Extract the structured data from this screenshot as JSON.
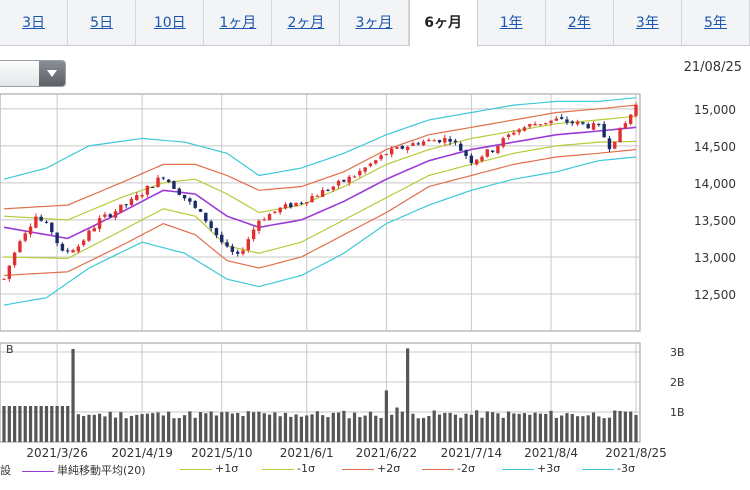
{
  "tabs": [
    {
      "label": "3日",
      "active": false
    },
    {
      "label": "5日",
      "active": false
    },
    {
      "label": "10日",
      "active": false
    },
    {
      "label": "1ヶ月",
      "active": false
    },
    {
      "label": "2ヶ月",
      "active": false
    },
    {
      "label": "3ヶ月",
      "active": false
    },
    {
      "label": "6ヶ月",
      "active": true
    },
    {
      "label": "1年",
      "active": false
    },
    {
      "label": "2年",
      "active": false
    },
    {
      "label": "3年",
      "active": false
    },
    {
      "label": "5年",
      "active": false
    }
  ],
  "date_label": "21/08/25",
  "volume_label": "B",
  "legend_prefix": "設",
  "colors": {
    "up": "#e03030",
    "down": "#1b2a6b",
    "ma": "#9b3bd6",
    "s1": "#b7cc3a",
    "s2": "#e0704a",
    "s3": "#3ec8d8",
    "grid": "#c8c8c8",
    "volume": "#555555"
  },
  "legend": [
    {
      "label": "単純移動平均(20)",
      "color": "#9b3bd6"
    },
    {
      "label": "+1σ",
      "color": "#b7cc3a"
    },
    {
      "label": "-1σ",
      "color": "#b7cc3a"
    },
    {
      "label": "+2σ",
      "color": "#e0704a"
    },
    {
      "label": "-2σ",
      "color": "#e0704a"
    },
    {
      "label": "+3σ",
      "color": "#3ec8d8"
    },
    {
      "label": "-3σ",
      "color": "#3ec8d8"
    }
  ],
  "chart_data": {
    "type": "candlestick",
    "ylim": [
      12000,
      15200
    ],
    "yticks": [
      12500,
      13000,
      13500,
      14000,
      14500,
      15000
    ],
    "ytick_labels": [
      "12,500",
      "13,000",
      "13,500",
      "14,000",
      "14,500",
      "15,000"
    ],
    "xtick_labels": [
      "2021/3/26",
      "2021/4/19",
      "2021/5/10",
      "2021/6/1",
      "2021/6/22",
      "2021/7/14",
      "2021/8/4",
      "2021/8/25"
    ],
    "xtick_index": [
      10,
      26,
      41,
      57,
      72,
      88,
      103,
      119
    ],
    "n_days": 120,
    "price_anchors": [
      [
        0,
        12700
      ],
      [
        3,
        13250
      ],
      [
        6,
        13550
      ],
      [
        9,
        13350
      ],
      [
        11,
        13050
      ],
      [
        14,
        13150
      ],
      [
        18,
        13500
      ],
      [
        24,
        13750
      ],
      [
        30,
        14100
      ],
      [
        34,
        13800
      ],
      [
        38,
        13500
      ],
      [
        42,
        13100
      ],
      [
        44,
        13000
      ],
      [
        48,
        13500
      ],
      [
        52,
        13650
      ],
      [
        56,
        13750
      ],
      [
        62,
        13950
      ],
      [
        66,
        14100
      ],
      [
        72,
        14400
      ],
      [
        78,
        14550
      ],
      [
        84,
        14600
      ],
      [
        88,
        14300
      ],
      [
        92,
        14450
      ],
      [
        96,
        14700
      ],
      [
        100,
        14800
      ],
      [
        104,
        14850
      ],
      [
        108,
        14800
      ],
      [
        112,
        14750
      ],
      [
        114,
        14500
      ],
      [
        117,
        14800
      ],
      [
        119,
        15050
      ]
    ],
    "series": {
      "ma": [
        [
          0,
          13400
        ],
        [
          12,
          13250
        ],
        [
          22,
          13600
        ],
        [
          30,
          13900
        ],
        [
          36,
          13850
        ],
        [
          42,
          13550
        ],
        [
          48,
          13400
        ],
        [
          56,
          13500
        ],
        [
          64,
          13750
        ],
        [
          72,
          14050
        ],
        [
          80,
          14300
        ],
        [
          88,
          14450
        ],
        [
          96,
          14550
        ],
        [
          104,
          14650
        ],
        [
          112,
          14700
        ],
        [
          119,
          14750
        ]
      ],
      "p1": [
        [
          0,
          13550
        ],
        [
          12,
          13500
        ],
        [
          22,
          13800
        ],
        [
          30,
          14000
        ],
        [
          36,
          14050
        ],
        [
          42,
          13850
        ],
        [
          48,
          13600
        ],
        [
          56,
          13700
        ],
        [
          64,
          13950
        ],
        [
          72,
          14250
        ],
        [
          80,
          14450
        ],
        [
          88,
          14600
        ],
        [
          96,
          14700
        ],
        [
          104,
          14800
        ],
        [
          112,
          14850
        ],
        [
          119,
          14900
        ]
      ],
      "m1": [
        [
          0,
          13000
        ],
        [
          12,
          12980
        ],
        [
          22,
          13350
        ],
        [
          30,
          13650
        ],
        [
          36,
          13550
        ],
        [
          42,
          13150
        ],
        [
          48,
          13050
        ],
        [
          56,
          13200
        ],
        [
          64,
          13500
        ],
        [
          72,
          13800
        ],
        [
          80,
          14100
        ],
        [
          88,
          14250
        ],
        [
          96,
          14400
        ],
        [
          104,
          14500
        ],
        [
          112,
          14550
        ],
        [
          119,
          14560
        ]
      ],
      "p2": [
        [
          0,
          13650
        ],
        [
          12,
          13700
        ],
        [
          22,
          14000
        ],
        [
          30,
          14250
        ],
        [
          36,
          14250
        ],
        [
          42,
          14100
        ],
        [
          48,
          13900
        ],
        [
          56,
          13950
        ],
        [
          64,
          14150
        ],
        [
          72,
          14450
        ],
        [
          80,
          14650
        ],
        [
          88,
          14750
        ],
        [
          96,
          14850
        ],
        [
          104,
          14950
        ],
        [
          112,
          15000
        ],
        [
          119,
          15050
        ]
      ],
      "m2": [
        [
          0,
          12750
        ],
        [
          12,
          12800
        ],
        [
          22,
          13150
        ],
        [
          30,
          13450
        ],
        [
          36,
          13300
        ],
        [
          42,
          12950
        ],
        [
          48,
          12850
        ],
        [
          56,
          13000
        ],
        [
          64,
          13300
        ],
        [
          72,
          13600
        ],
        [
          80,
          13950
        ],
        [
          88,
          14100
        ],
        [
          96,
          14250
        ],
        [
          104,
          14350
        ],
        [
          112,
          14400
        ],
        [
          119,
          14450
        ]
      ],
      "p3": [
        [
          0,
          14050
        ],
        [
          8,
          14200
        ],
        [
          16,
          14500
        ],
        [
          26,
          14600
        ],
        [
          34,
          14550
        ],
        [
          42,
          14400
        ],
        [
          48,
          14100
        ],
        [
          56,
          14200
        ],
        [
          64,
          14400
        ],
        [
          72,
          14650
        ],
        [
          80,
          14850
        ],
        [
          88,
          14950
        ],
        [
          96,
          15050
        ],
        [
          104,
          15100
        ],
        [
          112,
          15100
        ],
        [
          119,
          15150
        ]
      ],
      "m3": [
        [
          0,
          12350
        ],
        [
          8,
          12450
        ],
        [
          16,
          12850
        ],
        [
          26,
          13200
        ],
        [
          34,
          13050
        ],
        [
          42,
          12700
        ],
        [
          48,
          12600
        ],
        [
          56,
          12750
        ],
        [
          64,
          13050
        ],
        [
          72,
          13450
        ],
        [
          80,
          13700
        ],
        [
          88,
          13900
        ],
        [
          96,
          14050
        ],
        [
          104,
          14150
        ],
        [
          112,
          14300
        ],
        [
          119,
          14350
        ]
      ]
    },
    "volume": {
      "ylim": [
        0,
        3.3
      ],
      "yticks": [
        1,
        2,
        3
      ],
      "ytick_labels": [
        "1B",
        "2B",
        "3B"
      ],
      "base": 0.92,
      "spikes": [
        [
          13,
          3.1
        ],
        [
          53,
          0.97
        ],
        [
          72,
          1.72
        ],
        [
          74,
          1.15
        ],
        [
          76,
          3.12
        ]
      ]
    }
  }
}
